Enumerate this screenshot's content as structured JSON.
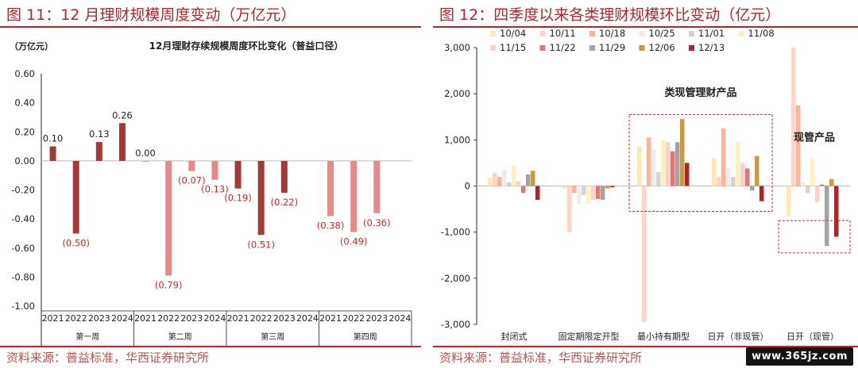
{
  "left": {
    "figure_title": "图 11：12 月理财规模周度变动（万亿元）",
    "source": "资料来源：普益标准，华西证券研究所"
  },
  "right": {
    "figure_title": "图 12：四季度以来各类理财规模环比变动（亿元）",
    "source": "资料来源：普益标准，华西证券研究所"
  },
  "watermark": "www.365jz.com",
  "colors": {
    "title_red": "#b2262a",
    "dark_red": "#a33a36",
    "light_red": "#e8888a",
    "source_red": "#c0504d"
  },
  "chart_data": [
    {
      "type": "bar",
      "title": "12月理财存续规模周度环比变化（普益口径）",
      "ylabel": "（万亿元）",
      "ylim": [
        -1.0,
        0.6
      ],
      "yticks": [
        "0.60",
        "0.40",
        "0.20",
        "0.00",
        "-0.20",
        "-0.40",
        "-0.60",
        "-0.80",
        "-1.00"
      ],
      "grid": false,
      "groups": [
        {
          "name": "第一周",
          "years": [
            "2021",
            "2022",
            "2023",
            "2024"
          ],
          "values": [
            0.1,
            -0.5,
            0.13,
            0.26
          ],
          "labels": [
            "0.10",
            "(0.50)",
            "0.13",
            "0.26"
          ],
          "style": "dark"
        },
        {
          "name": "第二周",
          "years": [
            "2021",
            "2022",
            "2023",
            "2024"
          ],
          "values": [
            0.0,
            -0.79,
            -0.07,
            -0.13
          ],
          "labels": [
            "0.00",
            "(0.79)",
            "(0.07)",
            "(0.13)"
          ],
          "style": "light"
        },
        {
          "name": "第三周",
          "years": [
            "2021",
            "2022",
            "2023",
            "2024"
          ],
          "values": [
            -0.19,
            -0.51,
            -0.22,
            null
          ],
          "labels": [
            "(0.19)",
            "(0.51)",
            "(0.22)",
            ""
          ],
          "style": "dark"
        },
        {
          "name": "第四周",
          "years": [
            "2021",
            "2022",
            "2023",
            "2024"
          ],
          "values": [
            -0.38,
            -0.49,
            -0.36,
            null
          ],
          "labels": [
            "(0.38)",
            "(0.49)",
            "(0.36)",
            ""
          ],
          "style": "light"
        }
      ]
    },
    {
      "type": "bar",
      "ylim": [
        -3000,
        3000
      ],
      "yticks": [
        "3,000",
        "2,000",
        "1,000",
        "0",
        "-1,000",
        "-2,000",
        "-3,000"
      ],
      "grid": false,
      "legend_position": "top",
      "categories": [
        "封闭式",
        "固定期限定开型",
        "最小持有期型",
        "日开（非现管）",
        "日开（现管）"
      ],
      "series": [
        {
          "name": "10/04",
          "color": "#fde9b8",
          "values": [
            180,
            -50,
            850,
            600,
            -650
          ]
        },
        {
          "name": "10/11",
          "color": "#fcd7c8",
          "values": [
            280,
            -1000,
            -2950,
            200,
            3000
          ]
        },
        {
          "name": "10/18",
          "color": "#f6b69c",
          "values": [
            200,
            -150,
            1050,
            1250,
            1750
          ]
        },
        {
          "name": "10/25",
          "color": "#f0ecec",
          "values": [
            350,
            -400,
            800,
            400,
            80
          ]
        },
        {
          "name": "11/01",
          "color": "#d4d4d4",
          "values": [
            80,
            -200,
            300,
            200,
            -150
          ]
        },
        {
          "name": "11/08",
          "color": "#fdf0c2",
          "values": [
            450,
            -380,
            1000,
            950,
            600
          ]
        },
        {
          "name": "11/15",
          "color": "#f9d3cb",
          "values": [
            100,
            -300,
            950,
            500,
            -350
          ]
        },
        {
          "name": "11/22",
          "color": "#e27576",
          "values": [
            -150,
            -280,
            750,
            380,
            30
          ]
        },
        {
          "name": "11/29",
          "color": "#a3a3a3",
          "values": [
            250,
            -300,
            950,
            -100,
            -1300
          ]
        },
        {
          "name": "12/06",
          "color": "#c89a45",
          "values": [
            330,
            -50,
            1450,
            650,
            150
          ]
        },
        {
          "name": "12/13",
          "color": "#a6282c",
          "values": [
            -300,
            -30,
            500,
            -330,
            -1100
          ]
        }
      ],
      "annotations": [
        {
          "text": "类现管理财产品",
          "box_categories": [
            2,
            3
          ]
        },
        {
          "text": "现管产品",
          "box_categories": [
            4
          ]
        }
      ]
    }
  ]
}
